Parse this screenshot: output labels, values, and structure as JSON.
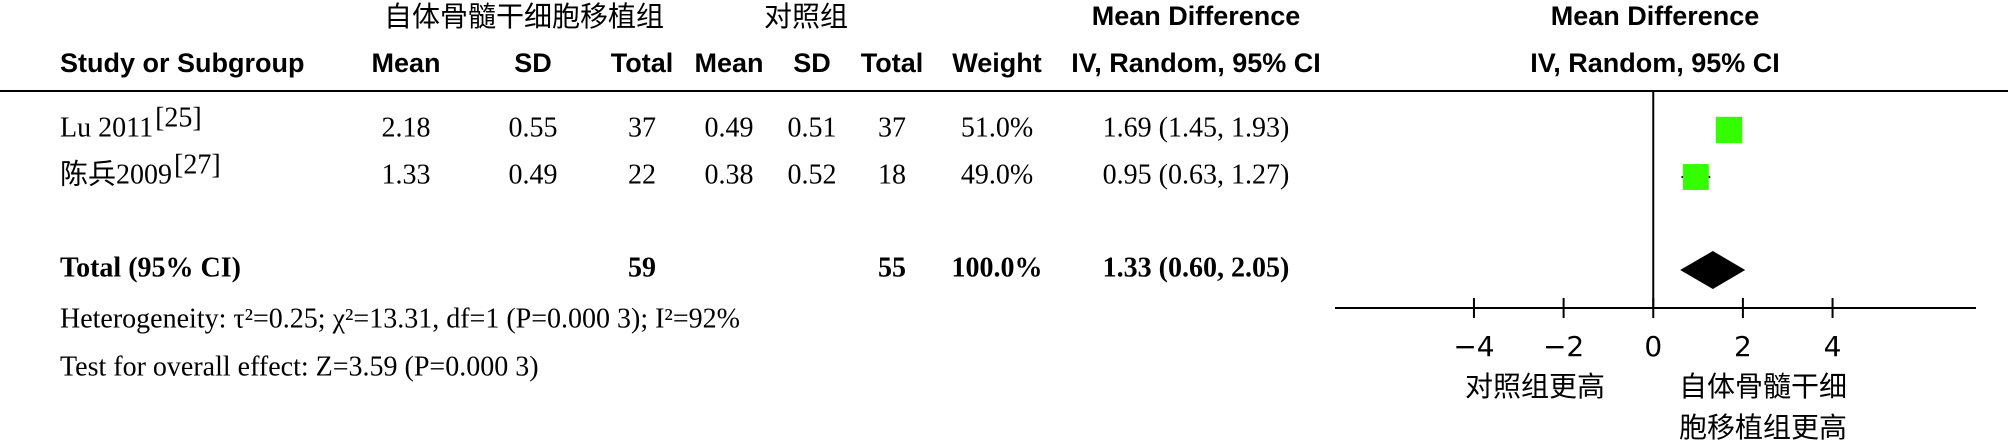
{
  "chart_data": {
    "type": "forest",
    "group_headers": [
      "自体骨髓干细胞移植组",
      "对照组"
    ],
    "table_effect_header": "Mean Difference",
    "plot_effect_header": "Mean Difference",
    "columns": [
      "Study or Subgroup",
      "Mean",
      "SD",
      "Total",
      "Mean",
      "SD",
      "Total",
      "Weight",
      "IV, Random, 95% CI"
    ],
    "plot_method": "IV, Random, 95% CI",
    "studies": [
      {
        "name": "Lu 2011",
        "ref": "[25]",
        "mean1": 2.18,
        "sd1": 0.55,
        "n1": 37,
        "mean2": 0.49,
        "sd2": 0.51,
        "n2": 37,
        "weight": 51.0,
        "weight_label": "51.0%",
        "md": 1.69,
        "lo": 1.45,
        "hi": 1.93,
        "ci_label": "1.69 (1.45, 1.93)"
      },
      {
        "name": "陈兵2009",
        "ref": "[27]",
        "mean1": 1.33,
        "sd1": 0.49,
        "n1": 22,
        "mean2": 0.38,
        "sd2": 0.52,
        "n2": 18,
        "weight": 49.0,
        "weight_label": "49.0%",
        "md": 0.95,
        "lo": 0.63,
        "hi": 1.27,
        "ci_label": "0.95 (0.63, 1.27)"
      }
    ],
    "total": {
      "name": "Total (95% CI)",
      "n1": 59,
      "n2": 55,
      "weight": 100.0,
      "weight_label": "100.0%",
      "md": 1.33,
      "lo": 0.6,
      "hi": 2.05,
      "ci_label": "1.33 (0.60, 2.05)"
    },
    "heterogeneity": "Heterogeneity: τ²=0.25; χ²=13.31, df=1 (P=0.000 3); I²=92%",
    "overall_effect": "Test for overall effect: Z=3.59 (P=0.000 3)",
    "xlim": [
      -7.1,
      7.2
    ],
    "xticks": [
      {
        "value": -4,
        "label": "−4"
      },
      {
        "value": -2,
        "label": "−2"
      },
      0,
      2,
      4
    ],
    "left_label": "对照组更高",
    "right_label": [
      "自体骨髓干细",
      "胞移植组更高"
    ],
    "square_color": "#33ff00",
    "diamond_color": "#000000"
  }
}
